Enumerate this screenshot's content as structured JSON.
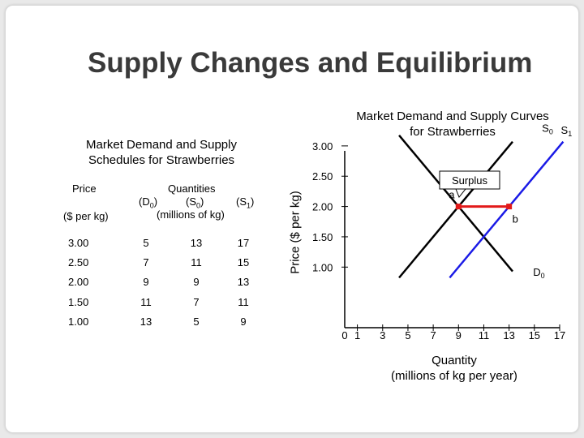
{
  "slide_title": "Supply Changes and Equilibrium",
  "schedule": {
    "title_line1": "Market Demand and Supply",
    "title_line2": "Schedules for Strawberries",
    "price_header": "Price",
    "price_unit": "($ per kg)",
    "quantities_header": "Quantities",
    "col_d0": "(D",
    "col_s0": "(S",
    "col_s1": "(S",
    "quantities_unit": "(millions of kg)",
    "rows": [
      {
        "price": "3.00",
        "d0": "5",
        "s0": "13",
        "s1": "17"
      },
      {
        "price": "2.50",
        "d0": "7",
        "s0": "11",
        "s1": "15"
      },
      {
        "price": "2.00",
        "d0": "9",
        "s0": "9",
        "s1": "13"
      },
      {
        "price": "1.50",
        "d0": "11",
        "s0": "7",
        "s1": "11"
      },
      {
        "price": "1.00",
        "d0": "13",
        "s0": "5",
        "s1": "9"
      }
    ]
  },
  "chart_data": {
    "type": "line",
    "title_line1": "Market Demand and Supply Curves",
    "title_line2": "for Strawberries",
    "xlabel_line1": "Quantity",
    "xlabel_line2": "(millions of kg per year)",
    "ylabel": "Price ($ per kg)",
    "x_ticks": [
      "0",
      "1",
      "3",
      "5",
      "7",
      "9",
      "11",
      "13",
      "15",
      "17"
    ],
    "y_ticks": [
      "1.00",
      "1.50",
      "2.00",
      "2.50",
      "3.00"
    ],
    "xlim": [
      0,
      17
    ],
    "ylim": [
      0,
      3.4
    ],
    "series": [
      {
        "name": "D",
        "sub": "0",
        "color": "#000000",
        "points": [
          [
            5.0,
            3.0
          ],
          [
            7.0,
            2.5
          ],
          [
            9.0,
            2.0
          ],
          [
            11.0,
            1.5
          ],
          [
            13.0,
            1.0
          ]
        ]
      },
      {
        "name": "S",
        "sub": "0",
        "color": "#000000",
        "points": [
          [
            5.0,
            1.0
          ],
          [
            7.0,
            1.5
          ],
          [
            9.0,
            2.0
          ],
          [
            11.0,
            2.5
          ],
          [
            13.0,
            3.0
          ]
        ]
      },
      {
        "name": "S",
        "sub": "1",
        "color": "#1a1ae6",
        "points": [
          [
            9.0,
            1.0
          ],
          [
            11.0,
            1.5
          ],
          [
            13.0,
            2.0
          ],
          [
            15.0,
            2.5
          ],
          [
            17.0,
            3.0
          ]
        ]
      }
    ],
    "points": [
      {
        "label": "a",
        "x": 9,
        "y": 2.0,
        "color": "#e21a1a"
      },
      {
        "label": "b",
        "x": 13,
        "y": 2.0,
        "color": "#e21a1a"
      }
    ],
    "surplus_label": "Surplus",
    "surplus_color": "#e21a1a"
  }
}
